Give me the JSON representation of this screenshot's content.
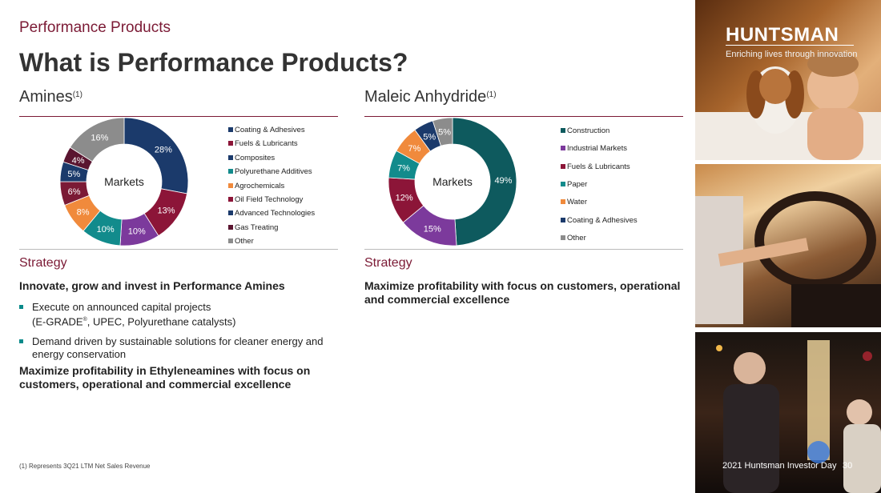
{
  "section_label": "Performance Products",
  "title": "What is Performance Products?",
  "amines": {
    "heading": "Amines",
    "footnote_ref": "(1)"
  },
  "maleic": {
    "heading": "Maleic Anhydride",
    "footnote_ref": "(1)"
  },
  "chart_data": [
    {
      "type": "pie",
      "center_label": "Markets",
      "categories": [
        "Coating & Adhesives",
        "Fuels & Lubricants",
        "Composites",
        "Polyurethane Additives",
        "Agrochemicals",
        "Oil Field Technology",
        "Advanced Technologies",
        "Gas Treating",
        "Other"
      ],
      "values": [
        28,
        13,
        10,
        10,
        8,
        6,
        5,
        4,
        16
      ],
      "labels": [
        "28%",
        "13%",
        "10%",
        "10%",
        "8%",
        "6%",
        "5%",
        "4%",
        "16%"
      ],
      "colors": [
        "#1b3a6b",
        "#8c1538",
        "#7c3a9c",
        "#128b8c",
        "#f08a3c",
        "#7b1a35",
        "#1b3a6b",
        "#5a1530",
        "#8c8c8c"
      ],
      "legend_colors": [
        "#1b3a6b",
        "#8c1538",
        "#1b3a6b",
        "#128b8c",
        "#f08a3c",
        "#8c1538",
        "#1b3a6b",
        "#5a1530",
        "#8c8c8c"
      ],
      "legend_position": "right"
    },
    {
      "type": "pie",
      "center_label": "Markets",
      "categories": [
        "Construction",
        "Industrial Markets",
        "Fuels & Lubricants",
        "Paper",
        "Water",
        "Coating & Adhesives",
        "Other"
      ],
      "values": [
        49,
        15,
        12,
        7,
        7,
        5,
        5
      ],
      "labels": [
        "49%",
        "15%",
        "12%",
        "7%",
        "7%",
        "5%",
        "5%"
      ],
      "colors": [
        "#0e5a5e",
        "#7c3a9c",
        "#8c1538",
        "#128b8c",
        "#f08a3c",
        "#1b3a6b",
        "#8c8c8c"
      ],
      "legend_colors": [
        "#0e5a5e",
        "#7c3a9c",
        "#8c1538",
        "#128b8c",
        "#f08a3c",
        "#1b3a6b",
        "#8c8c8c"
      ],
      "legend_position": "right"
    }
  ],
  "strategy_left": {
    "heading": "Strategy",
    "lead": "Innovate, grow and invest in Performance Amines",
    "bullets": [
      {
        "line1": "Execute on announced capital projects",
        "line2_pre": "(E-GRADE",
        "line2_sup": "®",
        "line2_post": ", UPEC, Polyurethane catalysts)"
      },
      {
        "line1": "Demand driven by sustainable solutions for cleaner energy and",
        "line2": "energy conservation"
      }
    ],
    "closing": "Maximize profitability in Ethyleneamines with focus on customers, operational and commercial excellence"
  },
  "strategy_right": {
    "heading": "Strategy",
    "lead": "Maximize profitability with focus on customers, operational and commercial excellence"
  },
  "footnote": "(1) Represents 3Q21 LTM Net Sales Revenue",
  "brand": {
    "name": "HUNTSMAN",
    "tagline": "Enriching lives through innovation"
  },
  "event_label": "2021 Huntsman Investor Day",
  "page_number": "30",
  "colors": {
    "accent": "#7b1a35",
    "bullet": "#0a8a8a"
  }
}
